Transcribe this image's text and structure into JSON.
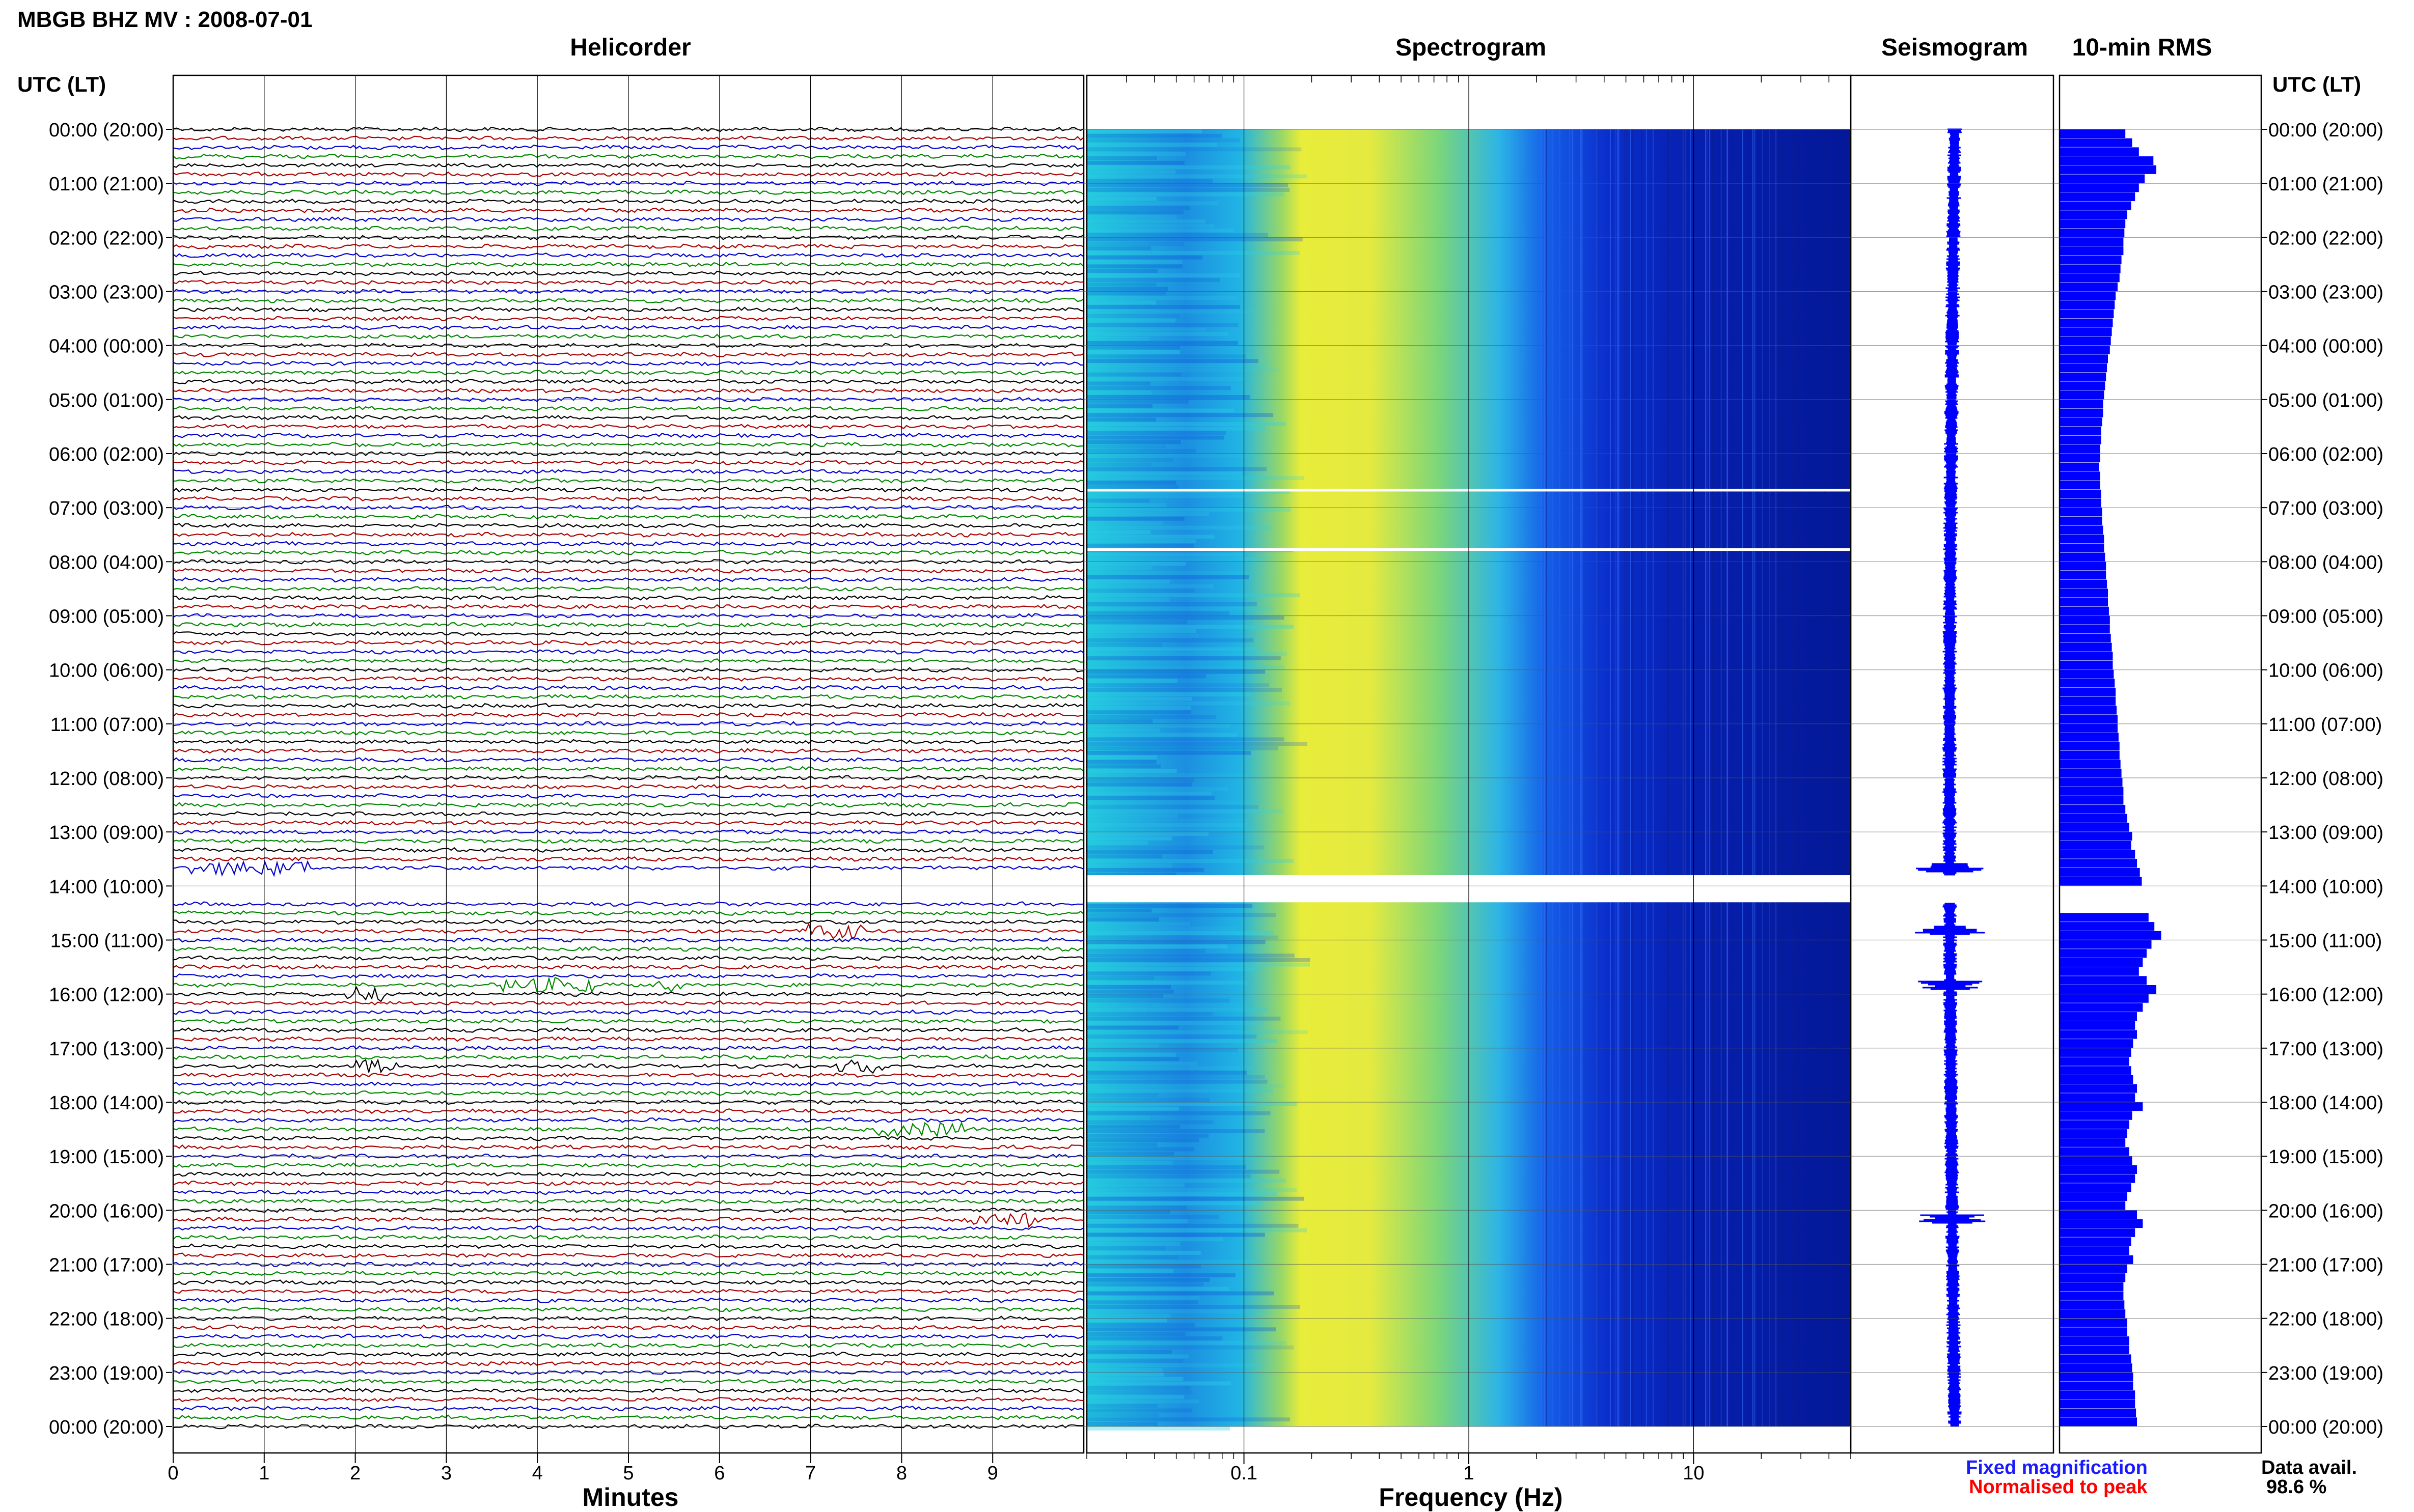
{
  "header": {
    "station_title": "MBGB BHZ MV : 2008-07-01"
  },
  "panels": {
    "helicorder": "Helicorder",
    "spectrogram": "Spectrogram",
    "seismogram": "Seismogram",
    "rms": "10-min RMS"
  },
  "axes": {
    "left_header": "UTC (LT)",
    "right_header": "UTC (LT)",
    "minutes_label": "Minutes",
    "frequency_label": "Frequency (Hz)"
  },
  "legend": {
    "fixed": "Fixed magnification",
    "normalised": "Normalised to peak",
    "data_avail_label": "Data avail.",
    "data_avail_value": "98.6 %"
  },
  "colors": {
    "trace_cycle": [
      "#000000",
      "#aa0000",
      "#0000cc",
      "#008800"
    ],
    "fixed_magnification": "#1a1aff",
    "normalised_to_peak": "#ff0000",
    "rms_bars": "#0000ff",
    "seismogram": "#0000ff"
  },
  "chart_data": [
    {
      "type": "line",
      "name": "Helicorder",
      "xlabel": "Minutes",
      "x_ticks": [
        "0",
        "1",
        "2",
        "3",
        "4",
        "5",
        "6",
        "7",
        "8",
        "9"
      ],
      "xlim": [
        0,
        10
      ],
      "time_labels": [
        "00:00 (20:00)",
        "01:00 (21:00)",
        "02:00 (22:00)",
        "03:00 (23:00)",
        "04:00 (00:00)",
        "05:00 (01:00)",
        "06:00 (02:00)",
        "07:00 (03:00)",
        "08:00 (04:00)",
        "09:00 (05:00)",
        "10:00 (06:00)",
        "11:00 (07:00)",
        "12:00 (08:00)",
        "13:00 (09:00)",
        "14:00 (10:00)",
        "15:00 (11:00)",
        "16:00 (12:00)",
        "17:00 (13:00)",
        "18:00 (14:00)",
        "19:00 (15:00)",
        "20:00 (16:00)",
        "21:00 (17:00)",
        "22:00 (18:00)",
        "23:00 (19:00)",
        "00:00 (20:00)"
      ],
      "traces_per_hour": 6,
      "gap_hours": [
        13.8,
        14.3
      ],
      "events": [
        {
          "hour": 13.67,
          "minute_start": 0.2,
          "minute_end": 1.5
        },
        {
          "hour": 14.83,
          "minute_start": 6.9,
          "minute_end": 7.6
        },
        {
          "hour": 15.83,
          "minute_start": 3.6,
          "minute_end": 4.6
        },
        {
          "hour": 15.83,
          "minute_start": 5.3,
          "minute_end": 5.6
        },
        {
          "hour": 16.0,
          "minute_start": 1.9,
          "minute_end": 2.3
        },
        {
          "hour": 17.33,
          "minute_start": 2.0,
          "minute_end": 2.5
        },
        {
          "hour": 17.33,
          "minute_start": 7.3,
          "minute_end": 7.8
        },
        {
          "hour": 18.5,
          "minute_start": 7.7,
          "minute_end": 8.7
        },
        {
          "hour": 20.17,
          "minute_start": 8.7,
          "minute_end": 9.5
        }
      ]
    },
    {
      "type": "heatmap",
      "name": "Spectrogram",
      "xlabel": "Frequency (Hz)",
      "x_scale": "log",
      "x_ticks": [
        "0.1",
        "1",
        "10"
      ],
      "xlim": [
        0.02,
        50
      ],
      "gap_hours": [
        6.65,
        6.7,
        7.75,
        7.8,
        13.8,
        14.3
      ]
    },
    {
      "type": "line",
      "name": "Seismogram",
      "gap_hours": [
        13.8,
        14.3
      ],
      "notable_spikes_hours": [
        13.67,
        14.83,
        15.83,
        20.17
      ]
    },
    {
      "type": "bar",
      "name": "10-min RMS",
      "bin_minutes": 10,
      "gap_hours": [
        13.8,
        14.3
      ],
      "relative_values": [
        0.68,
        0.75,
        0.82,
        0.97,
        1.0,
        0.88,
        0.82,
        0.78,
        0.74,
        0.7,
        0.68,
        0.67,
        0.66,
        0.66,
        0.64,
        0.63,
        0.62,
        0.6,
        0.58,
        0.57,
        0.56,
        0.55,
        0.54,
        0.53,
        0.52,
        0.5,
        0.49,
        0.48,
        0.47,
        0.46,
        0.45,
        0.45,
        0.44,
        0.43,
        0.43,
        0.42,
        0.42,
        0.41,
        0.42,
        0.42,
        0.43,
        0.43,
        0.44,
        0.44,
        0.45,
        0.46,
        0.46,
        0.47,
        0.48,
        0.48,
        0.49,
        0.5,
        0.5,
        0.51,
        0.52,
        0.52,
        0.53,
        0.54,
        0.55,
        0.55,
        0.56,
        0.57,
        0.58,
        0.58,
        0.59,
        0.6,
        0.6,
        0.61,
        0.62,
        0.62,
        0.63,
        0.64,
        0.65,
        0.66,
        0.66,
        0.68,
        0.7,
        0.72,
        0.75,
        0.74,
        0.78,
        0.8,
        0.83,
        0.85,
        0.0,
        0.0,
        0.0,
        0.92,
        0.98,
        1.05,
        0.95,
        0.9,
        0.86,
        0.82,
        0.9,
        1.0,
        0.92,
        0.86,
        0.8,
        0.78,
        0.8,
        0.76,
        0.74,
        0.72,
        0.74,
        0.76,
        0.8,
        0.78,
        0.86,
        0.75,
        0.72,
        0.7,
        0.68,
        0.72,
        0.75,
        0.8,
        0.78,
        0.74,
        0.7,
        0.68,
        0.8,
        0.86,
        0.78,
        0.74,
        0.72,
        0.76,
        0.7,
        0.68,
        0.66,
        0.66,
        0.67,
        0.68,
        0.7,
        0.7,
        0.72,
        0.72,
        0.74,
        0.75,
        0.76,
        0.76,
        0.78,
        0.78,
        0.79,
        0.8
      ]
    }
  ]
}
